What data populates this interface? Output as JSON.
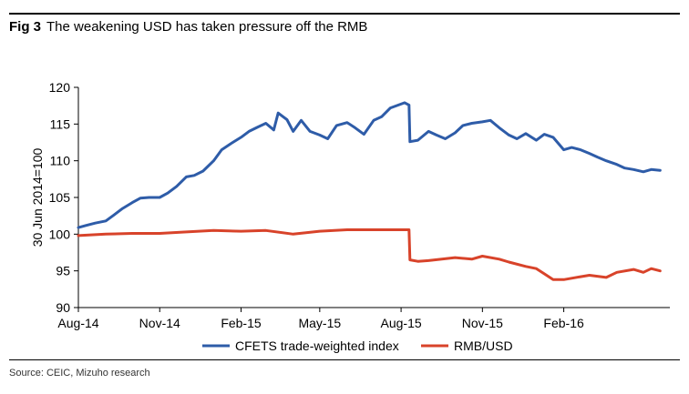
{
  "figure": {
    "number": "Fig 3",
    "title": "The weakening USD has taken pressure off the RMB",
    "source": "Source: CEIC, Mizuho research"
  },
  "colors": {
    "series1": "#2e5ca8",
    "series2": "#d8432a"
  },
  "chart_data": {
    "type": "line",
    "title": "The weakening USD has taken pressure off the RMB",
    "ylabel": "30 Jun 2014=100",
    "ylim": [
      90,
      120
    ],
    "yticks": [
      90,
      95,
      100,
      105,
      110,
      115,
      120
    ],
    "xlim": [
      "2014-08-01",
      "2016-05-31"
    ],
    "xticks": [
      {
        "date": "2014-08-01",
        "label": "Aug-14"
      },
      {
        "date": "2014-11-01",
        "label": "Nov-14"
      },
      {
        "date": "2015-02-01",
        "label": "Feb-15"
      },
      {
        "date": "2015-05-01",
        "label": "May-15"
      },
      {
        "date": "2015-08-01",
        "label": "Aug-15"
      },
      {
        "date": "2015-11-01",
        "label": "Nov-15"
      },
      {
        "date": "2016-02-01",
        "label": "Feb-16"
      }
    ],
    "legend": "bottom",
    "grid": false,
    "series": [
      {
        "name": "CFETS trade-weighted index",
        "color": "#2e5ca8",
        "points": [
          [
            "2014-08-01",
            100.9
          ],
          [
            "2014-08-10",
            101.2
          ],
          [
            "2014-08-20",
            101.5
          ],
          [
            "2014-09-01",
            101.8
          ],
          [
            "2014-09-10",
            102.6
          ],
          [
            "2014-09-20",
            103.5
          ],
          [
            "2014-10-01",
            104.3
          ],
          [
            "2014-10-10",
            104.9
          ],
          [
            "2014-10-20",
            105.0
          ],
          [
            "2014-11-01",
            105.0
          ],
          [
            "2014-11-10",
            105.6
          ],
          [
            "2014-11-20",
            106.5
          ],
          [
            "2014-12-01",
            107.8
          ],
          [
            "2014-12-10",
            108.0
          ],
          [
            "2014-12-20",
            108.6
          ],
          [
            "2015-01-01",
            110.0
          ],
          [
            "2015-01-10",
            111.5
          ],
          [
            "2015-01-20",
            112.3
          ],
          [
            "2015-02-01",
            113.2
          ],
          [
            "2015-02-10",
            114.0
          ],
          [
            "2015-02-20",
            114.6
          ],
          [
            "2015-03-01",
            115.1
          ],
          [
            "2015-03-10",
            114.2
          ],
          [
            "2015-03-15",
            116.5
          ],
          [
            "2015-03-25",
            115.6
          ],
          [
            "2015-04-01",
            114.0
          ],
          [
            "2015-04-10",
            115.5
          ],
          [
            "2015-04-20",
            114.0
          ],
          [
            "2015-05-01",
            113.5
          ],
          [
            "2015-05-10",
            113.0
          ],
          [
            "2015-05-20",
            114.8
          ],
          [
            "2015-06-01",
            115.2
          ],
          [
            "2015-06-10",
            114.5
          ],
          [
            "2015-06-20",
            113.6
          ],
          [
            "2015-07-01",
            115.5
          ],
          [
            "2015-07-10",
            116.0
          ],
          [
            "2015-07-20",
            117.2
          ],
          [
            "2015-08-05",
            117.9
          ],
          [
            "2015-08-10",
            117.6
          ],
          [
            "2015-08-11",
            112.6
          ],
          [
            "2015-08-20",
            112.8
          ],
          [
            "2015-09-01",
            114.0
          ],
          [
            "2015-09-10",
            113.5
          ],
          [
            "2015-09-20",
            113.0
          ],
          [
            "2015-10-01",
            113.8
          ],
          [
            "2015-10-10",
            114.8
          ],
          [
            "2015-10-20",
            115.1
          ],
          [
            "2015-11-01",
            115.3
          ],
          [
            "2015-11-10",
            115.5
          ],
          [
            "2015-11-20",
            114.5
          ],
          [
            "2015-12-01",
            113.5
          ],
          [
            "2015-12-10",
            113.0
          ],
          [
            "2015-12-20",
            113.7
          ],
          [
            "2016-01-01",
            112.8
          ],
          [
            "2016-01-10",
            113.6
          ],
          [
            "2016-01-20",
            113.2
          ],
          [
            "2016-02-01",
            111.5
          ],
          [
            "2016-02-10",
            111.8
          ],
          [
            "2016-02-20",
            111.5
          ],
          [
            "2016-03-01",
            111.0
          ],
          [
            "2016-03-10",
            110.5
          ],
          [
            "2016-03-20",
            110.0
          ],
          [
            "2016-04-01",
            109.5
          ],
          [
            "2016-04-10",
            109.0
          ],
          [
            "2016-04-20",
            108.8
          ],
          [
            "2016-05-01",
            108.5
          ],
          [
            "2016-05-10",
            108.8
          ],
          [
            "2016-05-20",
            108.7
          ]
        ]
      },
      {
        "name": "RMB/USD",
        "color": "#d8432a",
        "points": [
          [
            "2014-08-01",
            99.8
          ],
          [
            "2014-09-01",
            100.0
          ],
          [
            "2014-10-01",
            100.1
          ],
          [
            "2014-11-01",
            100.1
          ],
          [
            "2014-12-01",
            100.3
          ],
          [
            "2015-01-01",
            100.5
          ],
          [
            "2015-02-01",
            100.4
          ],
          [
            "2015-03-01",
            100.5
          ],
          [
            "2015-04-01",
            100.0
          ],
          [
            "2015-05-01",
            100.4
          ],
          [
            "2015-06-01",
            100.6
          ],
          [
            "2015-07-01",
            100.6
          ],
          [
            "2015-08-10",
            100.6
          ],
          [
            "2015-08-11",
            96.5
          ],
          [
            "2015-08-20",
            96.3
          ],
          [
            "2015-09-01",
            96.4
          ],
          [
            "2015-10-01",
            96.8
          ],
          [
            "2015-10-20",
            96.6
          ],
          [
            "2015-11-01",
            97.0
          ],
          [
            "2015-11-20",
            96.6
          ],
          [
            "2015-12-01",
            96.2
          ],
          [
            "2015-12-20",
            95.6
          ],
          [
            "2016-01-01",
            95.3
          ],
          [
            "2016-01-10",
            94.6
          ],
          [
            "2016-01-20",
            93.8
          ],
          [
            "2016-02-01",
            93.8
          ],
          [
            "2016-02-20",
            94.2
          ],
          [
            "2016-03-01",
            94.4
          ],
          [
            "2016-03-20",
            94.1
          ],
          [
            "2016-04-01",
            94.8
          ],
          [
            "2016-04-20",
            95.2
          ],
          [
            "2016-05-01",
            94.8
          ],
          [
            "2016-05-10",
            95.3
          ],
          [
            "2016-05-20",
            95.0
          ]
        ]
      }
    ]
  }
}
